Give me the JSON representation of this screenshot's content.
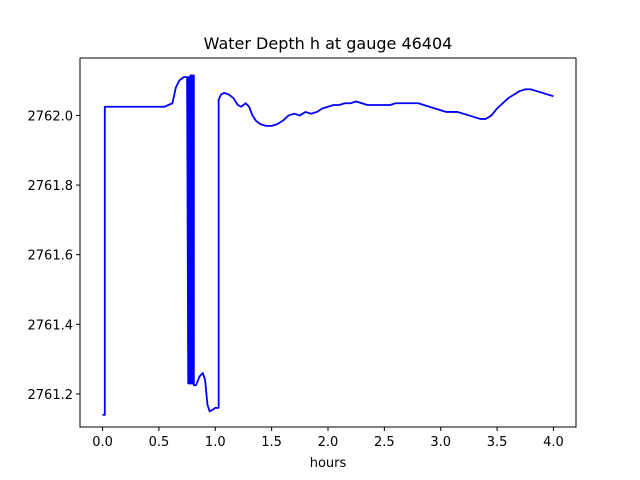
{
  "chart_data": {
    "type": "line",
    "title": "Water Depth h at gauge 46404",
    "xlabel": "hours",
    "ylabel": "",
    "xlim": [
      -0.2,
      4.2
    ],
    "ylim": [
      2761.105,
      2762.165
    ],
    "xticks": [
      0.0,
      0.5,
      1.0,
      1.5,
      2.0,
      2.5,
      3.0,
      3.5,
      4.0
    ],
    "xtick_labels": [
      "0.0",
      "0.5",
      "1.0",
      "1.5",
      "2.0",
      "2.5",
      "3.0",
      "3.5",
      "4.0"
    ],
    "yticks": [
      2761.2,
      2761.4,
      2761.6,
      2761.8,
      2762.0
    ],
    "ytick_labels": [
      "2761.2",
      "2761.4",
      "2761.6",
      "2761.8",
      "2762.0"
    ],
    "grid": false,
    "series": [
      {
        "color": "#0000ff",
        "x": [
          0.0,
          0.02,
          0.02,
          0.2,
          0.4,
          0.55,
          0.62,
          0.65,
          0.68,
          0.72,
          0.75,
          0.76,
          0.76,
          0.77,
          0.77,
          0.78,
          0.78,
          0.79,
          0.79,
          0.8,
          0.8,
          0.81,
          0.81,
          0.83,
          0.86,
          0.89,
          0.91,
          0.93,
          0.95,
          0.98,
          1.0,
          1.03,
          1.03,
          1.05,
          1.08,
          1.12,
          1.16,
          1.2,
          1.23,
          1.27,
          1.3,
          1.33,
          1.36,
          1.4,
          1.45,
          1.5,
          1.55,
          1.6,
          1.65,
          1.7,
          1.75,
          1.8,
          1.85,
          1.9,
          1.95,
          2.0,
          2.05,
          2.1,
          2.15,
          2.2,
          2.25,
          2.3,
          2.35,
          2.4,
          2.45,
          2.5,
          2.55,
          2.6,
          2.65,
          2.7,
          2.75,
          2.8,
          2.85,
          2.9,
          2.95,
          3.0,
          3.05,
          3.1,
          3.15,
          3.2,
          3.25,
          3.3,
          3.35,
          3.4,
          3.45,
          3.5,
          3.55,
          3.6,
          3.65,
          3.7,
          3.75,
          3.8,
          3.85,
          3.9,
          3.95,
          4.0
        ],
        "y": [
          2761.14,
          2761.14,
          2762.025,
          2762.025,
          2762.025,
          2762.025,
          2762.035,
          2762.08,
          2762.1,
          2762.11,
          2762.11,
          2761.23,
          2762.11,
          2762.11,
          2761.23,
          2761.23,
          2762.115,
          2762.115,
          2761.23,
          2761.23,
          2762.115,
          2762.115,
          2761.225,
          2761.225,
          2761.25,
          2761.26,
          2761.24,
          2761.17,
          2761.15,
          2761.155,
          2761.16,
          2761.16,
          2762.045,
          2762.06,
          2762.065,
          2762.06,
          2762.05,
          2762.03,
          2762.025,
          2762.035,
          2762.025,
          2762.0,
          2761.985,
          2761.975,
          2761.97,
          2761.97,
          2761.975,
          2761.985,
          2762.0,
          2762.005,
          2762.0,
          2762.01,
          2762.005,
          2762.01,
          2762.02,
          2762.025,
          2762.03,
          2762.03,
          2762.035,
          2762.035,
          2762.04,
          2762.035,
          2762.03,
          2762.03,
          2762.03,
          2762.03,
          2762.03,
          2762.035,
          2762.035,
          2762.035,
          2762.035,
          2762.035,
          2762.03,
          2762.025,
          2762.02,
          2762.015,
          2762.01,
          2762.01,
          2762.01,
          2762.005,
          2762.0,
          2761.995,
          2761.99,
          2761.99,
          2762.0,
          2762.02,
          2762.035,
          2762.05,
          2762.06,
          2762.07,
          2762.075,
          2762.075,
          2762.07,
          2762.065,
          2762.06,
          2762.055
        ]
      }
    ]
  }
}
